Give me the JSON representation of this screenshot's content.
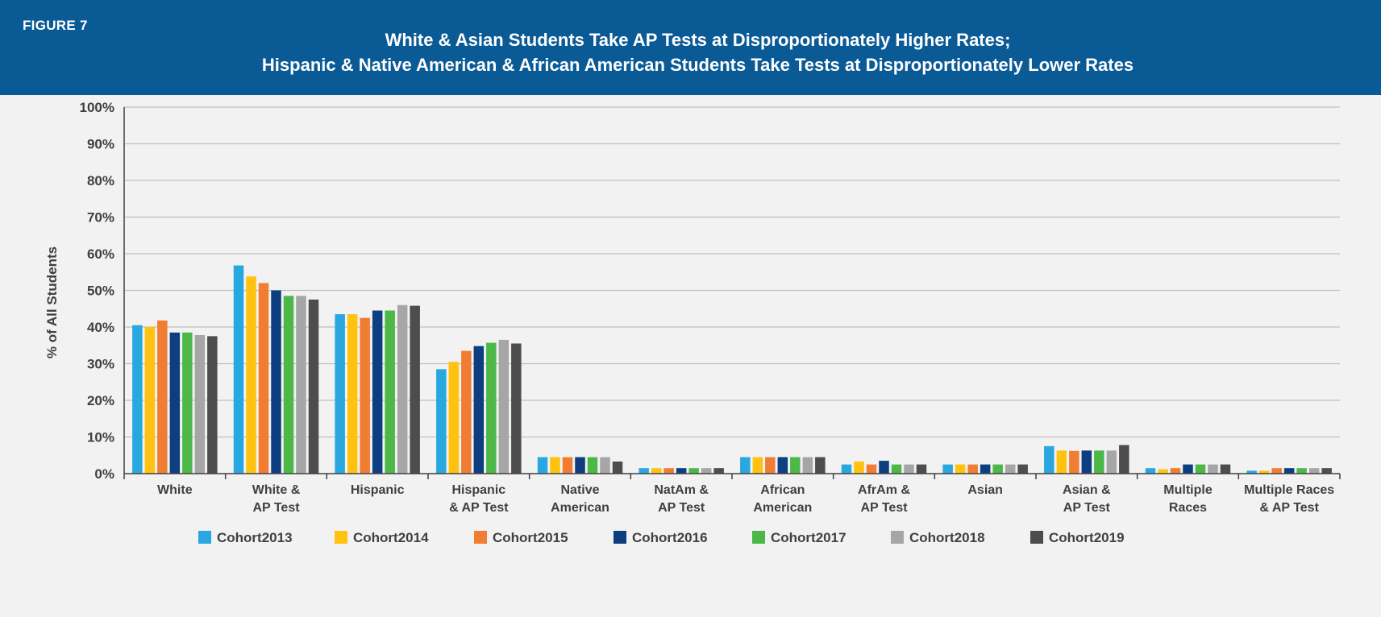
{
  "header": {
    "figure_label": "FIGURE 7",
    "title_line1": "White & Asian Students Take AP Tests at Disproportionately Higher Rates;",
    "title_line2": "Hispanic & Native American & African American Students Take Tests at Disproportionately Lower Rates"
  },
  "colors": {
    "header_bg": "#0a5a96",
    "panel_bg": "#f2f2f2",
    "gridline": "#bfbfbf"
  },
  "chart_data": {
    "type": "bar",
    "title": "White & Asian Students Take AP Tests at Disproportionately Higher Rates; Hispanic & Native American & African American Students Take Tests at Disproportionately Lower Rates",
    "xlabel": "",
    "ylabel": "% of All Students",
    "ylim": [
      0,
      100
    ],
    "yticks": [
      "0%",
      "10%",
      "20%",
      "30%",
      "40%",
      "50%",
      "60%",
      "70%",
      "80%",
      "90%",
      "100%"
    ],
    "grid": true,
    "legend_position": "bottom",
    "categories": [
      [
        "White"
      ],
      [
        "White &",
        "AP Test"
      ],
      [
        "Hispanic"
      ],
      [
        "Hispanic",
        "& AP Test"
      ],
      [
        "Native",
        "American"
      ],
      [
        "NatAm &",
        "AP Test"
      ],
      [
        "African",
        "American"
      ],
      [
        "AfrAm &",
        "AP Test"
      ],
      [
        "Asian"
      ],
      [
        "Asian &",
        "AP Test"
      ],
      [
        "Multiple",
        "Races"
      ],
      [
        "Multiple Races",
        "& AP Test"
      ]
    ],
    "series": [
      {
        "name": "Cohort2013",
        "color": "#29a8e0",
        "values": [
          40.5,
          56.8,
          43.5,
          28.5,
          4.5,
          1.5,
          4.5,
          2.5,
          2.5,
          7.5,
          1.5,
          0.8
        ]
      },
      {
        "name": "Cohort2014",
        "color": "#ffc20e",
        "values": [
          40.0,
          53.8,
          43.5,
          30.5,
          4.5,
          1.5,
          4.5,
          3.3,
          2.5,
          6.3,
          1.2,
          0.8
        ]
      },
      {
        "name": "Cohort2015",
        "color": "#f07d32",
        "values": [
          41.8,
          52.0,
          42.5,
          33.5,
          4.5,
          1.5,
          4.5,
          2.5,
          2.5,
          6.2,
          1.5,
          1.5
        ]
      },
      {
        "name": "Cohort2016",
        "color": "#0d3f80",
        "values": [
          38.5,
          50.0,
          44.5,
          34.8,
          4.5,
          1.5,
          4.5,
          3.5,
          2.5,
          6.3,
          2.5,
          1.5
        ]
      },
      {
        "name": "Cohort2017",
        "color": "#4cb848",
        "values": [
          38.5,
          48.5,
          44.5,
          35.7,
          4.5,
          1.5,
          4.5,
          2.5,
          2.5,
          6.3,
          2.5,
          1.5
        ]
      },
      {
        "name": "Cohort2018",
        "color": "#a6a6a6",
        "values": [
          37.8,
          48.5,
          46.0,
          36.5,
          4.5,
          1.5,
          4.5,
          2.5,
          2.5,
          6.3,
          2.5,
          1.5
        ]
      },
      {
        "name": "Cohort2019",
        "color": "#4d4d4d",
        "values": [
          37.5,
          47.5,
          45.8,
          35.5,
          3.3,
          1.5,
          4.5,
          2.5,
          2.5,
          7.8,
          2.5,
          1.5
        ]
      }
    ]
  }
}
